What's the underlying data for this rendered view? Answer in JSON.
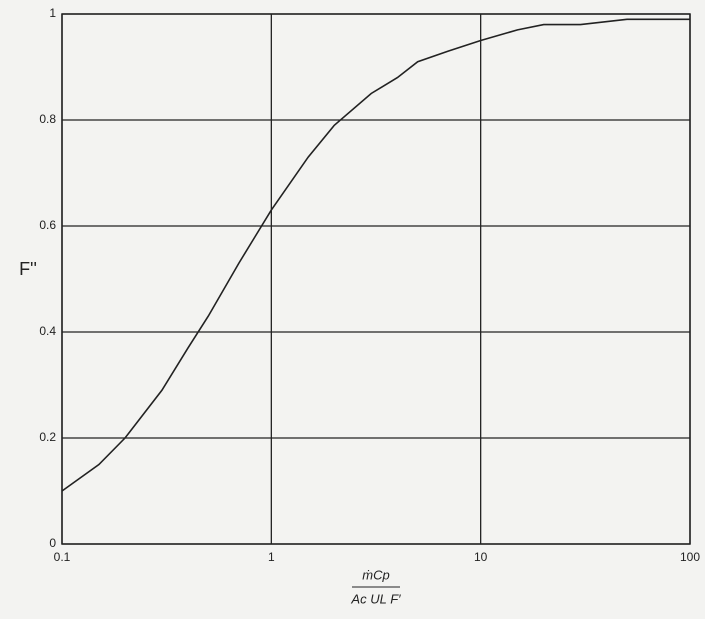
{
  "chart_data": {
    "type": "line",
    "x_scale": "log",
    "grid": true,
    "ylabel": "F''",
    "xlabel": {
      "numerator": "ṁCp",
      "denominator": "Ac UL F′"
    },
    "x": [
      0.1,
      0.15,
      0.2,
      0.3,
      0.4,
      0.5,
      0.7,
      1,
      1.5,
      2,
      3,
      4,
      5,
      7,
      10,
      15,
      20,
      30,
      50,
      70,
      100
    ],
    "series": [
      {
        "color": "#222222",
        "values": [
          0.1,
          0.15,
          0.2,
          0.29,
          0.37,
          0.43,
          0.53,
          0.63,
          0.73,
          0.79,
          0.85,
          0.88,
          0.91,
          0.93,
          0.95,
          0.97,
          0.98,
          0.98,
          0.99,
          0.99,
          0.99
        ]
      }
    ],
    "xlim": [
      0.1,
      100
    ],
    "xticks": [
      0.1,
      1,
      10,
      100
    ],
    "ylim": [
      0,
      1
    ],
    "yticks": [
      0,
      0.2,
      0.4,
      0.6,
      0.8,
      1
    ]
  }
}
